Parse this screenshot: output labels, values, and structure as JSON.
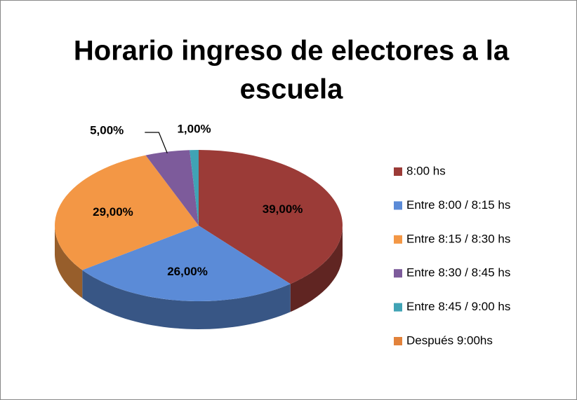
{
  "chart_data": {
    "type": "pie3d",
    "title": [
      "Horario ingreso de electores a la",
      "escuela"
    ],
    "categories": [
      "8:00  hs",
      "Entre 8:00 / 8:15 hs",
      "Entre 8:15 / 8:30 hs",
      "Entre 8:30 / 8:45 hs",
      "Entre 8:45 / 9:00 hs",
      "Después 9:00hs"
    ],
    "values": [
      39,
      26,
      29,
      5,
      1,
      0
    ],
    "value_labels": [
      "39,00%",
      "26,00%",
      "29,00%",
      "5,00%",
      "1,00%",
      null
    ],
    "colors": [
      "#9b3b37",
      "#5b8bd7",
      "#f39745",
      "#7d5b9b",
      "#40a3b5",
      "#e2823b"
    ],
    "legend": "right"
  }
}
